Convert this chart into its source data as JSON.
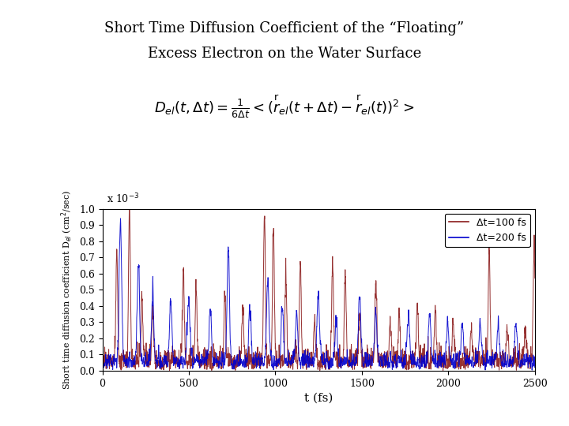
{
  "title_line1": "Short Time Diffusion Coefficient of the “Floating”",
  "title_line2": "Excess Electron on the Water Surface",
  "xlabel": "t (fs)",
  "ylabel": "Short time diffusion coefficient D$_{el}$ (cm$^2$/sec)",
  "xlim": [
    0,
    2500
  ],
  "ylim": [
    0,
    1.0
  ],
  "yticks": [
    0,
    0.1,
    0.2,
    0.3,
    0.4,
    0.5,
    0.6,
    0.7,
    0.8,
    0.9,
    1.0
  ],
  "legend1": "Δt=100 fs",
  "legend2": "Δt=200 fs",
  "color1": "#8B1A1A",
  "color2": "#0000CD",
  "scale_label": "x 10$^{-3}$",
  "background_color": "#ffffff"
}
